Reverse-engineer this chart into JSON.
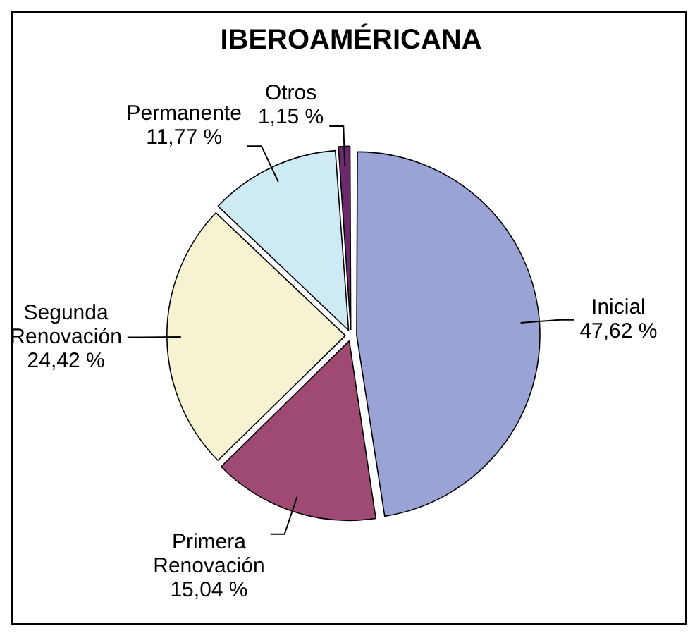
{
  "chart_data": {
    "type": "pie",
    "title": "IBEROAMÉRICANA",
    "categories": [
      "Inicial",
      "Primera Renovación",
      "Segunda Renovación",
      "Permanente",
      "Otros"
    ],
    "values": [
      47.62,
      15.04,
      24.42,
      11.77,
      1.15
    ],
    "colors": [
      "#99a3d6",
      "#9e4a72",
      "#f5f3d2",
      "#cdeaf5",
      "#6b2a6b"
    ],
    "value_labels": [
      "47,62 %",
      "15,04 %",
      "24,42 %",
      "11,77 %",
      "1,15 %"
    ],
    "legend": false
  }
}
